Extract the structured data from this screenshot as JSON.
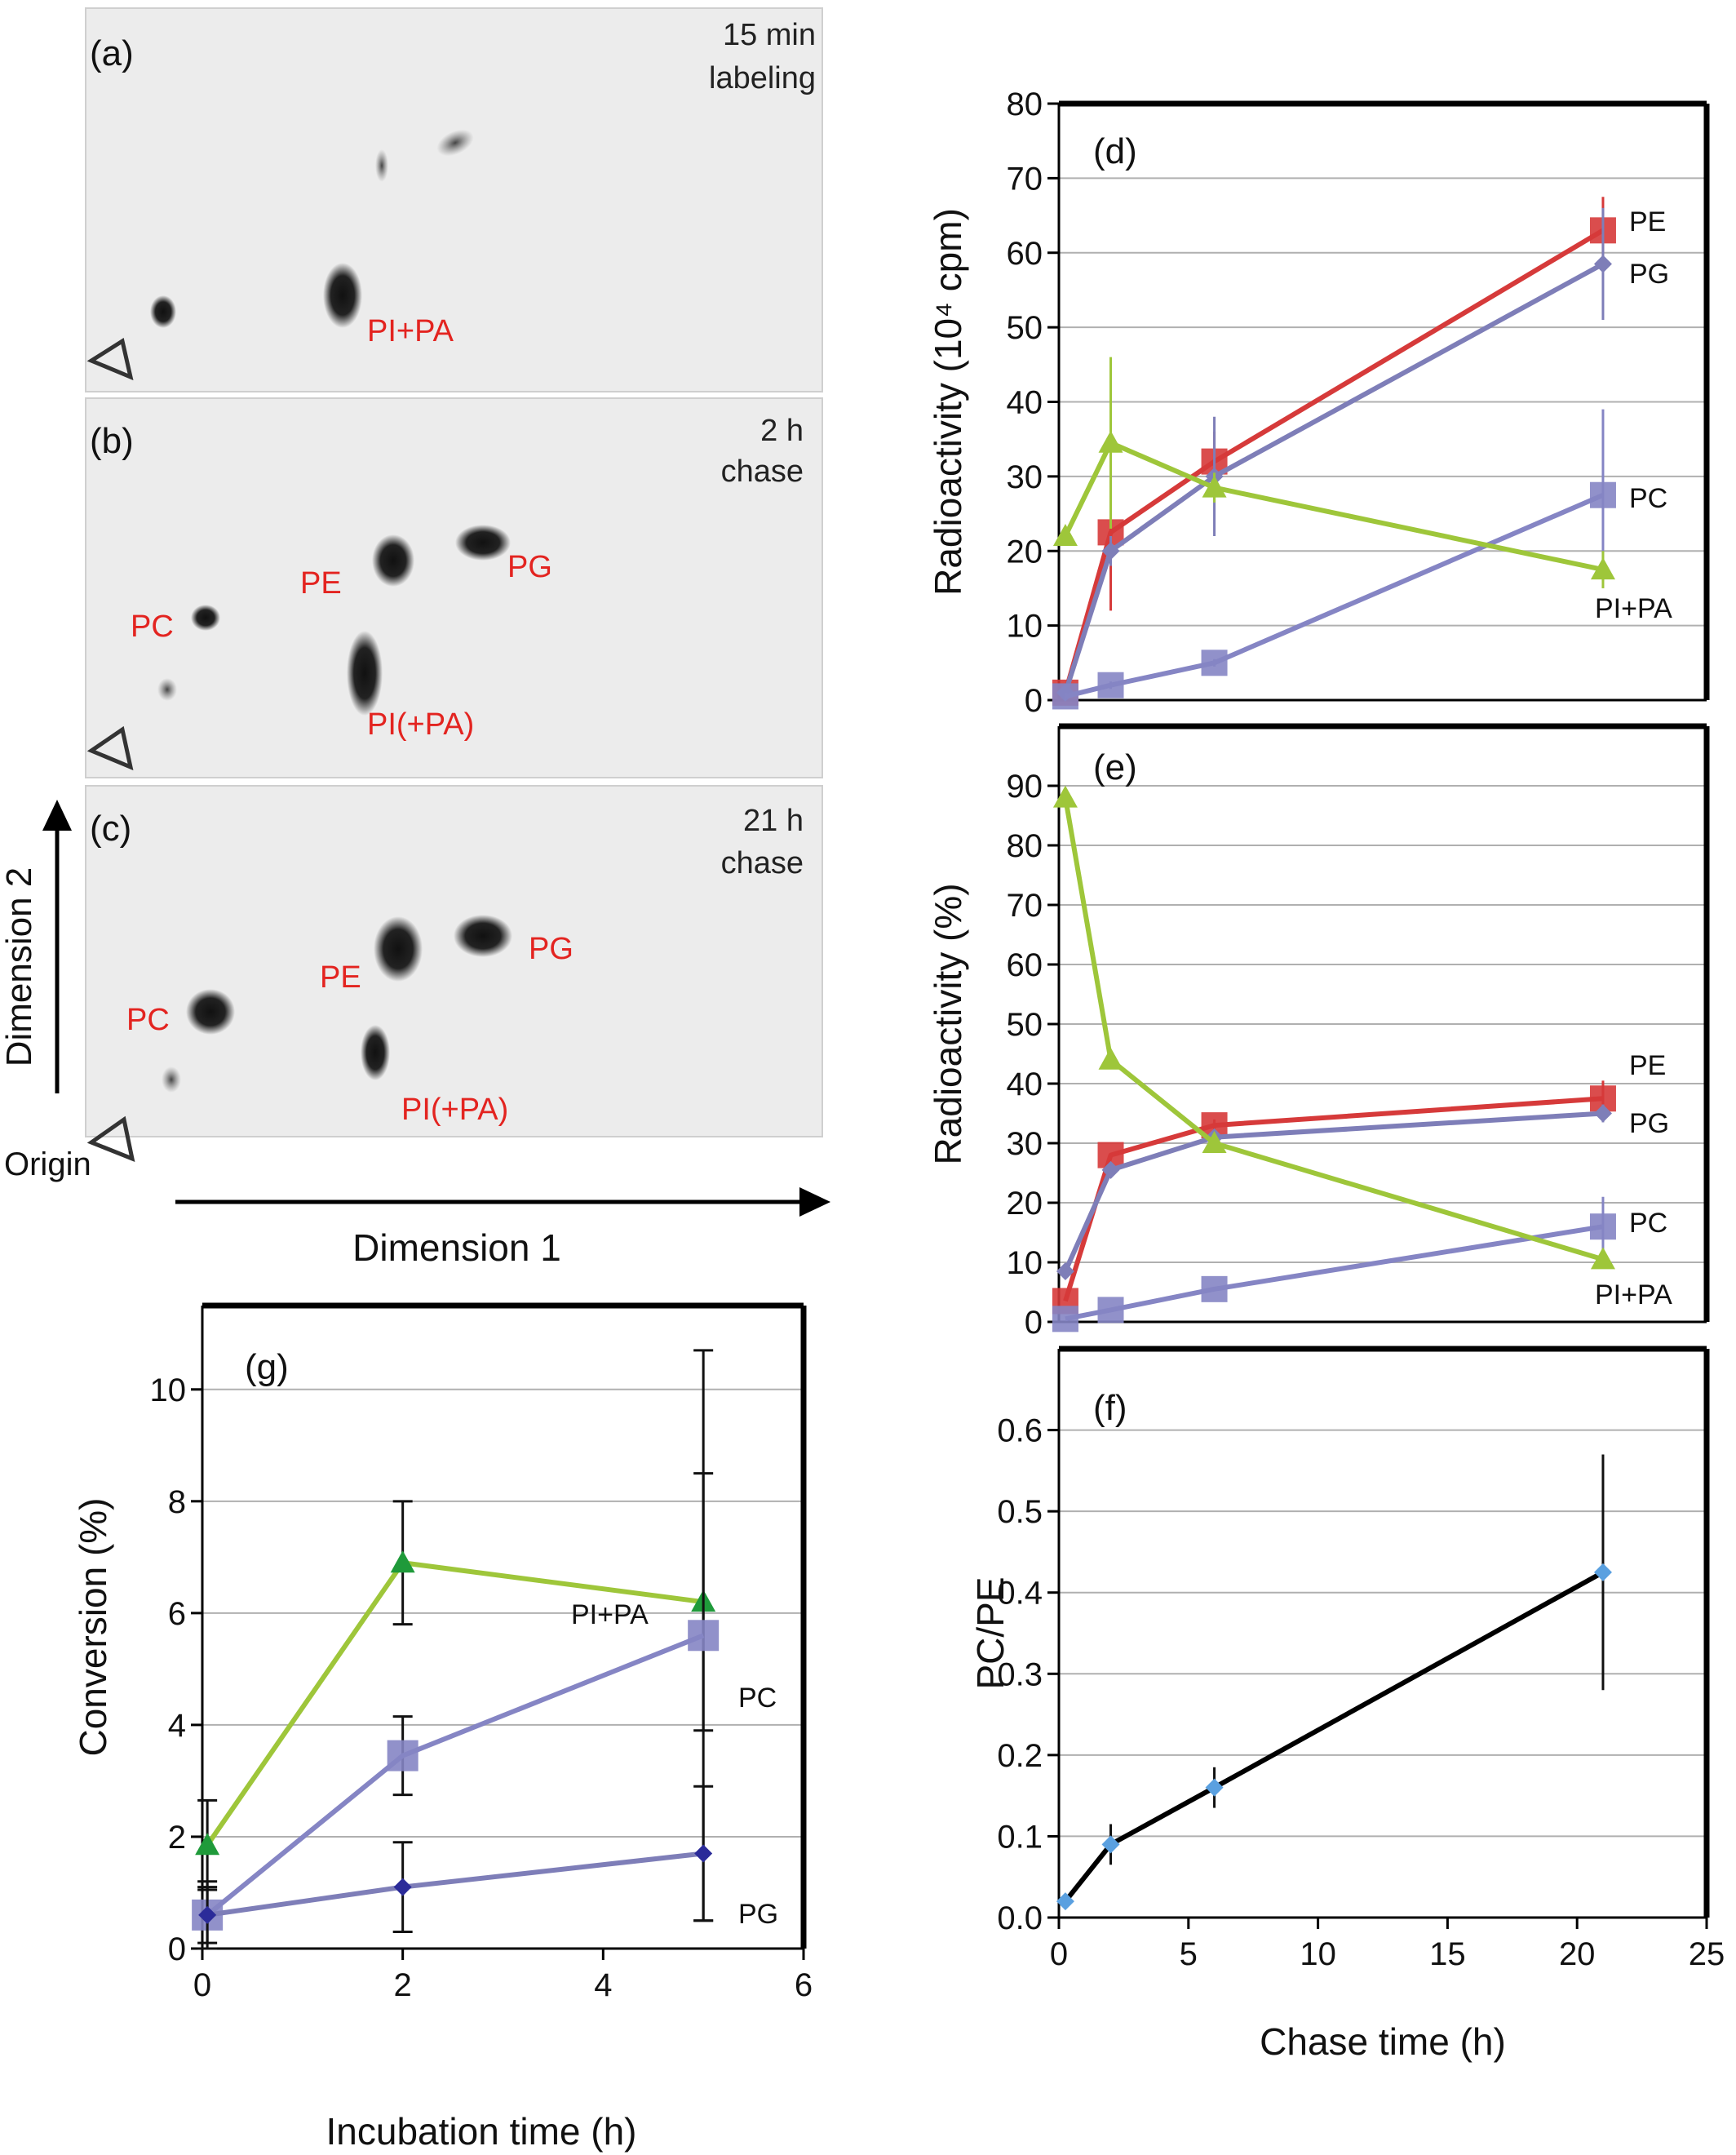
{
  "colors": {
    "PE": "#d63a3a",
    "PG": "#7e7eb8",
    "PC": "#8585c4",
    "PIPA": "#9ec63a",
    "PIPA_g": "#9ec63a",
    "PG_dark": "#2b2b99",
    "PG_blue": "#5aa0e0",
    "PIPA_green": "#1f9a3a",
    "label_red": "#e32420",
    "axis": "#000000",
    "grid": "#b0b0b0"
  },
  "tlc": {
    "a": {
      "panel": "(a)",
      "line1": "15 min",
      "line2": "labeling",
      "spots": [
        "PI+PA"
      ]
    },
    "b": {
      "panel": "(b)",
      "line1": "2 h",
      "line2": "chase",
      "spots": [
        "PC",
        "PE",
        "PG",
        "PI(+PA)"
      ]
    },
    "c": {
      "panel": "(c)",
      "line1": "21 h",
      "line2": "chase",
      "spots": [
        "PC",
        "PE",
        "PG",
        "PI(+PA)"
      ]
    },
    "dimension1": "Dimension 1",
    "dimension2": "Dimension 2",
    "origin": "Origin"
  },
  "chart_data": [
    {
      "panel": "(d)",
      "type": "line",
      "ylabel": "Radioactivity (10⁴ cpm)",
      "xlabel": "",
      "ylim": [
        0,
        80
      ],
      "yticks": [
        0,
        10,
        20,
        30,
        40,
        50,
        60,
        70,
        80
      ],
      "xlim": [
        0,
        25
      ],
      "grid": true,
      "series": [
        {
          "name": "PE",
          "color": "PE",
          "marker": "square",
          "x": [
            0.25,
            2,
            6,
            21
          ],
          "y": [
            1,
            22.5,
            32,
            63
          ],
          "err": [
            1,
            10.5,
            4,
            4.5
          ]
        },
        {
          "name": "PG",
          "color": "PG",
          "marker": "diamond",
          "x": [
            0.25,
            2,
            6,
            21
          ],
          "y": [
            1,
            20,
            30,
            58.5
          ],
          "err": [
            0.5,
            2,
            8,
            7.5
          ]
        },
        {
          "name": "PC",
          "color": "PC",
          "marker": "square",
          "x": [
            0.25,
            2,
            6,
            21
          ],
          "y": [
            0.5,
            2,
            5,
            27.5
          ],
          "err": [
            0.5,
            0.5,
            0.5,
            11.5
          ]
        },
        {
          "name": "PI+PA",
          "color": "PIPA",
          "marker": "triangle",
          "x": [
            0.25,
            2,
            6,
            21
          ],
          "y": [
            22,
            34.5,
            28.5,
            17.5
          ],
          "err": [
            0,
            11.5,
            2,
            2.5
          ]
        }
      ]
    },
    {
      "panel": "(e)",
      "type": "line",
      "ylabel": "Radioactivity (%)",
      "xlabel": "",
      "ylim": [
        0,
        100
      ],
      "yticks": [
        0,
        10,
        20,
        30,
        40,
        50,
        60,
        70,
        80,
        90
      ],
      "xlim": [
        0,
        25
      ],
      "grid": true,
      "series": [
        {
          "name": "PE",
          "color": "PE",
          "marker": "square",
          "x": [
            0.25,
            2,
            6,
            21
          ],
          "y": [
            3.5,
            28,
            33,
            37.5
          ],
          "err": [
            0,
            0,
            1,
            3
          ]
        },
        {
          "name": "PG",
          "color": "PG",
          "marker": "diamond",
          "x": [
            0.25,
            2,
            6,
            21
          ],
          "y": [
            8.5,
            25.5,
            31,
            35
          ],
          "err": [
            0,
            1,
            1,
            1.5
          ]
        },
        {
          "name": "PC",
          "color": "PC",
          "marker": "square",
          "x": [
            0.25,
            2,
            6,
            21
          ],
          "y": [
            0.5,
            2,
            5.5,
            16
          ],
          "err": [
            0,
            0,
            0,
            5
          ]
        },
        {
          "name": "PI+PA",
          "color": "PIPA",
          "marker": "triangle",
          "x": [
            0.25,
            2,
            6,
            21
          ],
          "y": [
            88,
            44,
            30,
            10.5
          ],
          "err": [
            0,
            0,
            1,
            1.5
          ]
        }
      ]
    },
    {
      "panel": "(f)",
      "type": "line",
      "ylabel": "PC/PE",
      "xlabel": "Chase time (h)",
      "ylim": [
        0,
        0.7
      ],
      "yticks": [
        0.0,
        0.1,
        0.2,
        0.3,
        0.4,
        0.5,
        0.6
      ],
      "xlim": [
        0,
        25
      ],
      "xticks": [
        0,
        5,
        10,
        15,
        20,
        25
      ],
      "grid": true,
      "series": [
        {
          "color": "PG_blue",
          "line": "#000000",
          "marker": "diamond",
          "x": [
            0.25,
            2,
            6,
            21
          ],
          "y": [
            0.02,
            0.09,
            0.16,
            0.425
          ],
          "err": [
            0,
            0.025,
            0.025,
            0.145
          ]
        }
      ]
    },
    {
      "panel": "(g)",
      "type": "line",
      "ylabel": "Conversion (%)",
      "xlabel": "Incubation time (h)",
      "ylim": [
        0,
        11.5
      ],
      "yticks": [
        0,
        2,
        4,
        6,
        8,
        10
      ],
      "xlim": [
        0,
        6
      ],
      "xticks": [
        0,
        2,
        4,
        6
      ],
      "grid": true,
      "series": [
        {
          "name": "PI+PA",
          "color": "PIPA_g",
          "markerColor": "PIPA_green",
          "marker": "triangle",
          "x": [
            0.05,
            2,
            5
          ],
          "y": [
            1.85,
            6.9,
            6.2
          ],
          "err": [
            0.8,
            1.1,
            2.3
          ]
        },
        {
          "name": "PC",
          "color": "PC",
          "marker": "square",
          "x": [
            0.05,
            2,
            5
          ],
          "y": [
            0.6,
            3.45,
            5.6
          ],
          "err": [
            0.6,
            0.7,
            5.1
          ]
        },
        {
          "name": "PG",
          "color": "PG",
          "markerColor": "PG_dark",
          "marker": "diamond",
          "x": [
            0.05,
            2,
            5
          ],
          "y": [
            0.6,
            1.1,
            1.7
          ],
          "err": [
            0.5,
            0.8,
            1.2
          ]
        }
      ]
    }
  ]
}
